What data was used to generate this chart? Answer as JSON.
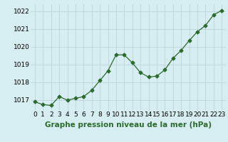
{
  "x": [
    0,
    1,
    2,
    3,
    4,
    5,
    6,
    7,
    8,
    9,
    10,
    11,
    12,
    13,
    14,
    15,
    16,
    17,
    18,
    19,
    20,
    21,
    22,
    23
  ],
  "y": [
    1016.9,
    1016.75,
    1016.7,
    1017.2,
    1017.0,
    1017.1,
    1017.2,
    1017.55,
    1018.1,
    1018.65,
    1019.55,
    1019.55,
    1019.1,
    1018.55,
    1018.3,
    1018.35,
    1018.7,
    1019.35,
    1019.8,
    1020.35,
    1020.85,
    1021.2,
    1021.8,
    1022.05
  ],
  "line_color": "#2d6a2d",
  "marker": "D",
  "marker_size": 2.5,
  "bg_color": "#d6eef2",
  "grid_color": "#b8cfd4",
  "xlabel": "Graphe pression niveau de la mer (hPa)",
  "xlabel_color": "#2d6a2d",
  "xlabel_fontsize": 7.5,
  "ylabel_ticks": [
    1017,
    1018,
    1019,
    1020,
    1021,
    1022
  ],
  "xlim": [
    -0.5,
    23.5
  ],
  "ylim": [
    1016.4,
    1022.4
  ],
  "tick_fontsize": 6.5,
  "xtick_labels": [
    "0",
    "1",
    "2",
    "3",
    "4",
    "5",
    "6",
    "7",
    "8",
    "9",
    "10",
    "11",
    "12",
    "13",
    "14",
    "15",
    "16",
    "17",
    "18",
    "19",
    "20",
    "21",
    "22",
    "23"
  ]
}
